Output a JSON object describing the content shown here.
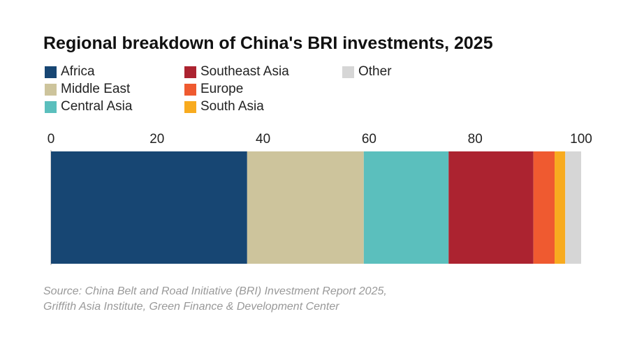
{
  "chart_data": {
    "type": "bar",
    "orientation": "horizontal-stacked",
    "title": "Regional breakdown of China's BRI investments, 2025",
    "xlim": [
      0,
      100
    ],
    "ticks": [
      "0",
      "20",
      "40",
      "60",
      "80",
      "100"
    ],
    "grid": false,
    "legend_placement": "top",
    "series": [
      {
        "name": "Africa",
        "value": 37,
        "color": "#174673"
      },
      {
        "name": "Middle East",
        "value": 22,
        "color": "#cdc49c"
      },
      {
        "name": "Central Asia",
        "value": 16,
        "color": "#5bbfbd"
      },
      {
        "name": "Southeast Asia",
        "value": 16,
        "color": "#ac2330"
      },
      {
        "name": "Europe",
        "value": 4,
        "color": "#ef5a30"
      },
      {
        "name": "South Asia",
        "value": 2,
        "color": "#f8ab1f"
      },
      {
        "name": "Other",
        "value": 3,
        "color": "#d6d6d6"
      }
    ]
  },
  "source": [
    "Source: China Belt and Road Initiative (BRI) Investment Report 2025,",
    "Griffith Asia Institute, Green Finance & Development Center"
  ]
}
